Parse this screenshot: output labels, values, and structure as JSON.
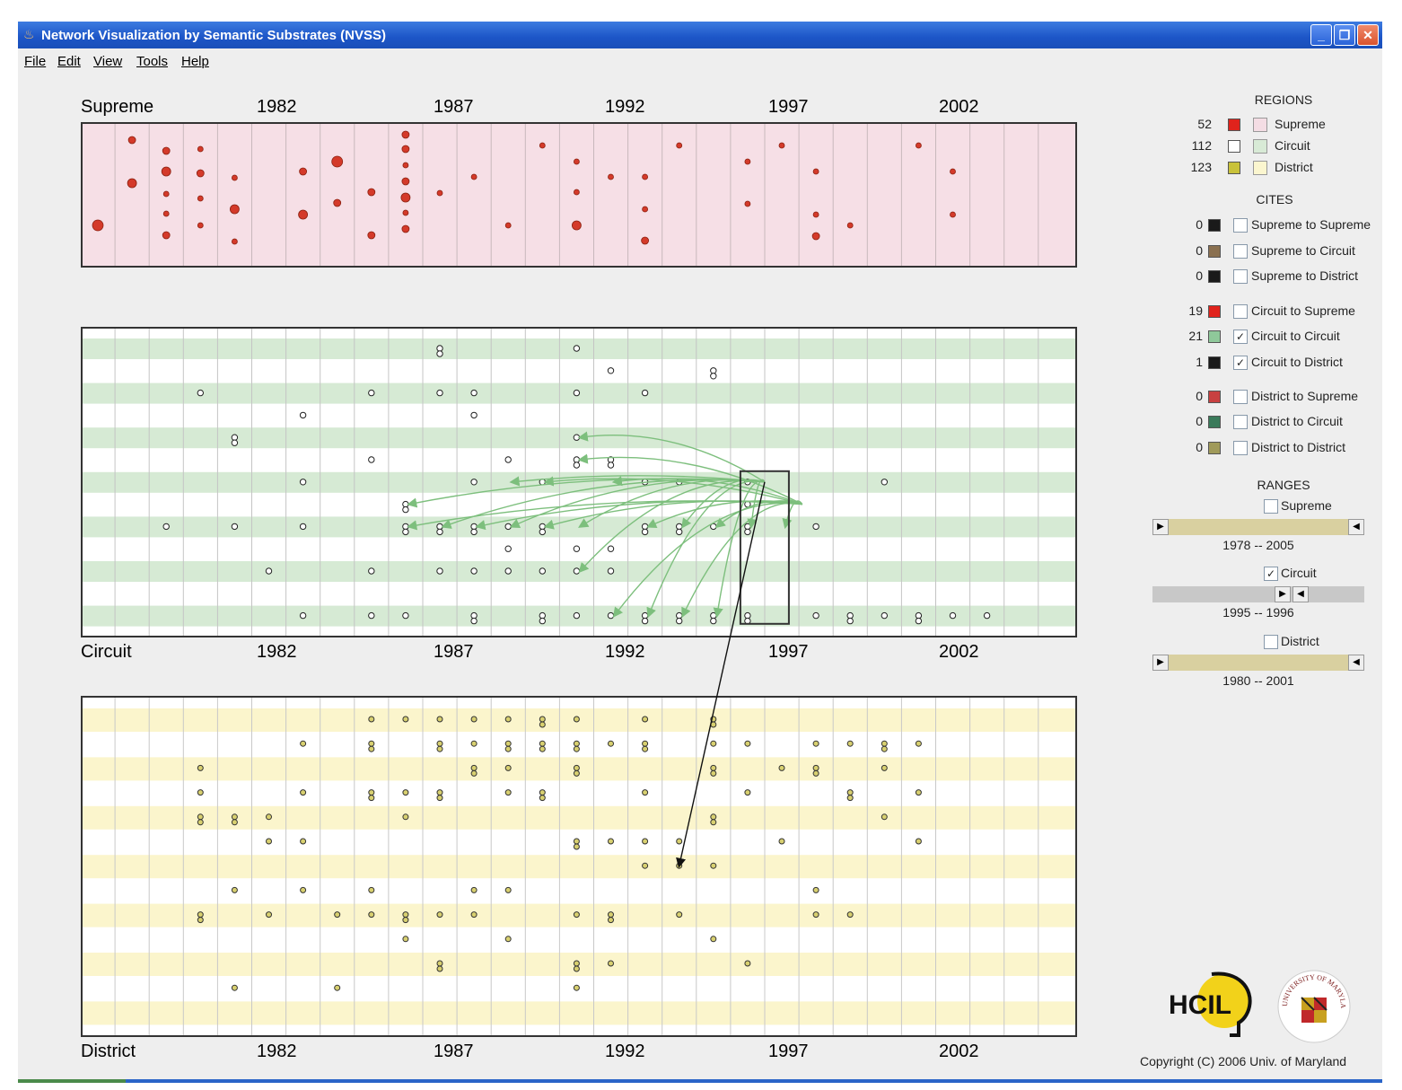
{
  "window": {
    "title": "Network Visualization by Semantic Substrates (NVSS)",
    "controls": [
      "_",
      "❐",
      "✕"
    ]
  },
  "menu": [
    "File",
    "Edit",
    "View",
    "Tools",
    "Help"
  ],
  "plots": {
    "supreme_label": "Supreme",
    "circuit_label": "Circuit",
    "district_label": "District",
    "year_labels": [
      "1982",
      "1987",
      "1992",
      "1997",
      "2002"
    ]
  },
  "legend": {
    "regions_title": "REGIONS",
    "regions": [
      {
        "count": "52",
        "label": "Supreme",
        "swatch": "#e0231c",
        "box": "#f4dde4"
      },
      {
        "count": "112",
        "label": "Circuit",
        "swatch": "#ffffff",
        "box": "#d8ead6"
      },
      {
        "count": "123",
        "label": "District",
        "swatch": "#c9c23a",
        "box": "#fbf6cf"
      }
    ],
    "cites_title": "CITES",
    "cites": [
      {
        "count": "0",
        "label": "Supreme to Supreme",
        "swatch": "#1a1a1a",
        "checked": false
      },
      {
        "count": "0",
        "label": "Supreme to Circuit",
        "swatch": "#8a7050",
        "checked": false
      },
      {
        "count": "0",
        "label": "Supreme to District",
        "swatch": "#1a1a1a",
        "checked": false
      },
      {
        "count": "19",
        "label": "Circuit to Supreme",
        "swatch": "#e0231c",
        "checked": false
      },
      {
        "count": "21",
        "label": "Circuit to Circuit",
        "swatch": "#8fc89a",
        "checked": true
      },
      {
        "count": "1",
        "label": "Circuit to District",
        "swatch": "#1a1a1a",
        "checked": true
      },
      {
        "count": "0",
        "label": "District to Supreme",
        "swatch": "#c84040",
        "checked": false
      },
      {
        "count": "0",
        "label": "District to Circuit",
        "swatch": "#3a7a5a",
        "checked": false
      },
      {
        "count": "0",
        "label": "District to District",
        "swatch": "#a09a5a",
        "checked": false
      }
    ],
    "ranges_title": "RANGES",
    "ranges": [
      {
        "label": "Supreme",
        "checked": false,
        "text": "1978 -- 2005"
      },
      {
        "label": "Circuit",
        "checked": true,
        "text": "1995 -- 1996"
      },
      {
        "label": "District",
        "checked": false,
        "text": "1980 -- 2001"
      }
    ]
  },
  "logos": {
    "hcil": "HCIL",
    "umd": "UNIVERSITY OF MARYLAND"
  },
  "copyright": "Copyright (C) 2006   Univ. of Maryland",
  "colors": {
    "supreme_bg": "#f6dfe6",
    "circuit_band": "#d6ead4",
    "district_band": "#fbf5cc",
    "supreme_node": "#d43a2a",
    "circuit_edge": "#7dbf7d",
    "district_node": "#d8d070"
  }
}
